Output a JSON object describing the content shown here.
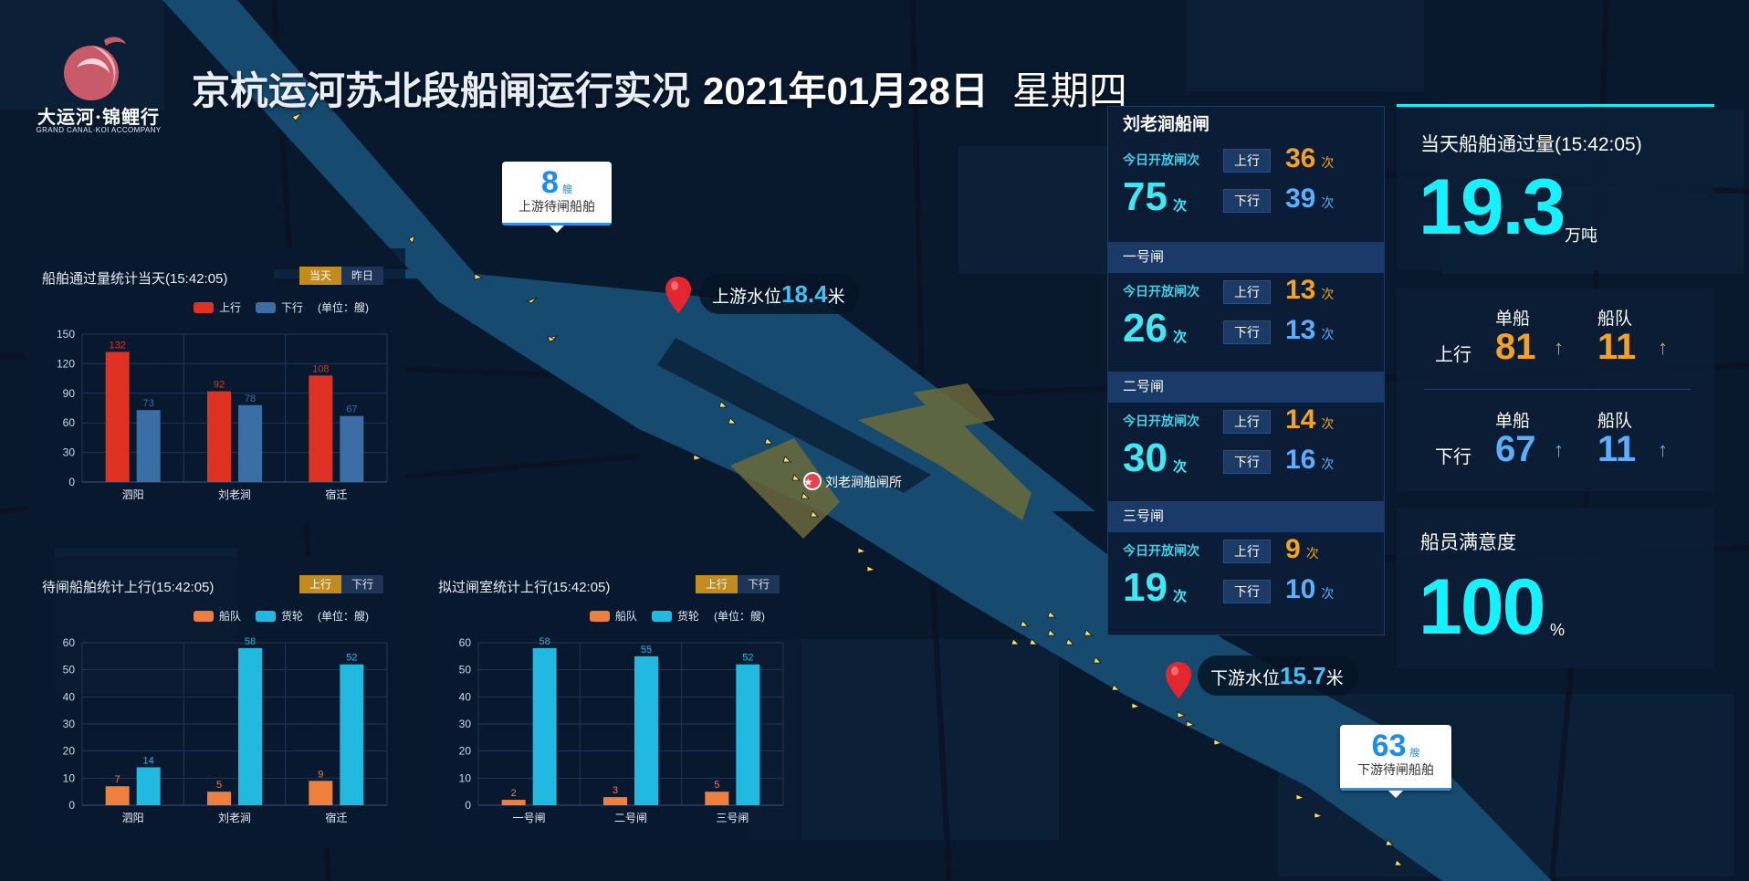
{
  "header": {
    "logo_cn": "大运河·锦鲤行",
    "logo_en": "GRAND CANAL·KOI ACCOMPANY",
    "title": "京杭运河苏北段船闸运行实况",
    "date": "2021年01月28日",
    "weekday": "星期四"
  },
  "map": {
    "upstream_callout": {
      "num": "8",
      "unit": "艘",
      "label": "上游待闸船舶"
    },
    "downstream_callout": {
      "num": "63",
      "unit": "艘",
      "label": "下游待闸船舶"
    },
    "upstream_level": {
      "label": "上游水位",
      "value": "18.4",
      "unit": "米"
    },
    "downstream_level": {
      "label": "下游水位",
      "value": "15.7",
      "unit": "米"
    },
    "lock_station": "刘老涧船闸所"
  },
  "chart1": {
    "title": "船舶通过量统计当天(15:42:05)",
    "tabs": [
      "当天",
      "昨日"
    ],
    "legend": [
      "上行",
      "下行"
    ],
    "unit_note": "(单位：艘)",
    "colors": [
      "#e03222",
      "#3a6ea5"
    ]
  },
  "chart2": {
    "title": "待闸船舶统计上行(15:42:05)",
    "tabs": [
      "上行",
      "下行"
    ],
    "legend": [
      "船队",
      "货轮"
    ],
    "unit_note": "(单位：艘)",
    "colors": [
      "#ef7f3c",
      "#22b9e0"
    ]
  },
  "chart3": {
    "title": "拟过闸室统计上行(15:42:05)",
    "tabs": [
      "上行",
      "下行"
    ],
    "legend": [
      "船队",
      "货轮"
    ],
    "unit_note": "(单位：艘)",
    "colors": [
      "#ef7f3c",
      "#22b9e0"
    ]
  },
  "chart_data": [
    {
      "type": "bar",
      "title": "船舶通过量统计当天(15:42:05)",
      "categories": [
        "泗阳",
        "刘老涧",
        "宿迁"
      ],
      "series": [
        {
          "name": "上行",
          "values": [
            132,
            92,
            108
          ]
        },
        {
          "name": "下行",
          "values": [
            73,
            78,
            67
          ]
        }
      ],
      "ylim": [
        0,
        150
      ],
      "yticks": [
        0,
        30,
        60,
        90,
        120,
        150
      ]
    },
    {
      "type": "bar",
      "title": "待闸船舶统计上行(15:42:05)",
      "categories": [
        "泗阳",
        "刘老涧",
        "宿迁"
      ],
      "series": [
        {
          "name": "船队",
          "values": [
            7,
            5,
            9
          ]
        },
        {
          "name": "货轮",
          "values": [
            14,
            58,
            52
          ]
        }
      ],
      "ylim": [
        0,
        60
      ],
      "yticks": [
        0,
        10,
        20,
        30,
        40,
        50,
        60
      ]
    },
    {
      "type": "bar",
      "title": "拟过闸室统计上行(15:42:05)",
      "categories": [
        "一号闸",
        "二号闸",
        "三号闸"
      ],
      "series": [
        {
          "name": "船队",
          "values": [
            2,
            3,
            5
          ]
        },
        {
          "name": "货轮",
          "values": [
            58,
            55,
            52
          ]
        }
      ],
      "ylim": [
        0,
        60
      ],
      "yticks": [
        0,
        10,
        20,
        30,
        40,
        50,
        60
      ]
    }
  ],
  "locks": {
    "name": "刘老涧船闸",
    "open_label": "今日开放闸次",
    "up_label": "上行",
    "down_label": "下行",
    "unit": "次",
    "main": {
      "total": "75",
      "up": "36",
      "down": "39"
    },
    "items": [
      {
        "name": "一号闸",
        "total": "26",
        "up": "13",
        "down": "13"
      },
      {
        "name": "二号闸",
        "total": "30",
        "up": "14",
        "down": "16"
      },
      {
        "name": "三号闸",
        "total": "19",
        "up": "9",
        "down": "10"
      }
    ]
  },
  "stats": {
    "throughput_title": "当天船舶通过量(15:42:05)",
    "throughput_value": "19.3",
    "throughput_unit": "万吨",
    "col_single": "单船",
    "col_fleet": "船队",
    "up_label": "上行",
    "down_label": "下行",
    "up_single": "81",
    "up_fleet": "11",
    "down_single": "67",
    "down_fleet": "11",
    "arrow": "↑",
    "satisfaction_title": "船员满意度",
    "satisfaction_value": "100",
    "satisfaction_unit": "%",
    "accent": "#15f2ff"
  }
}
